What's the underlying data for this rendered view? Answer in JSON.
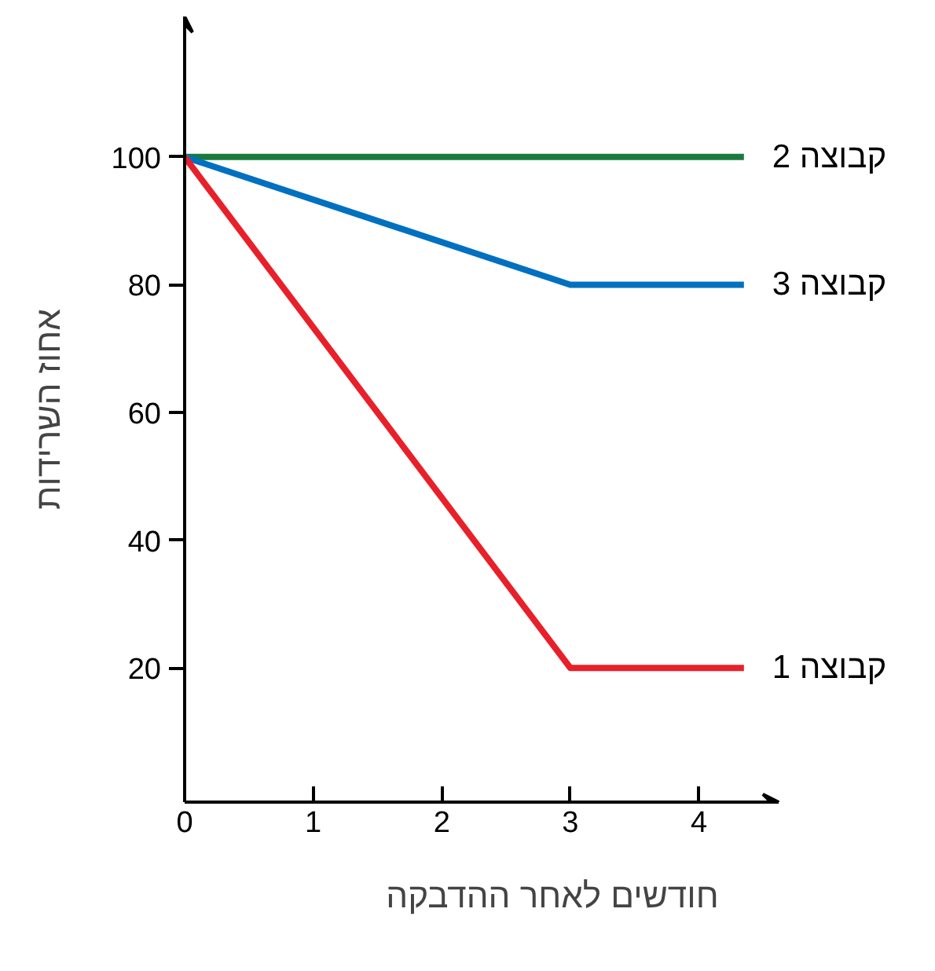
{
  "chart_data": {
    "type": "line",
    "xlabel": "חודשים לאחר ההדבקה",
    "ylabel": "אחוז השרידות",
    "xlim": [
      0,
      4.62
    ],
    "ylim": [
      -1,
      122
    ],
    "xticks": [
      0,
      1,
      2,
      3,
      4
    ],
    "yticks": [
      20,
      40,
      60,
      80,
      100
    ],
    "grid": false,
    "marker": "none",
    "line_style": "solid",
    "series": [
      {
        "name": "קבוצה 2",
        "color": "#1a7a3c",
        "x": [
          0,
          4.35
        ],
        "values": [
          100,
          100
        ]
      },
      {
        "name": "קבוצה 3",
        "color": "#0070c0",
        "x": [
          0,
          3,
          4.35
        ],
        "values": [
          100,
          80,
          80
        ]
      },
      {
        "name": "קבוצה 1",
        "color": "#e8202a",
        "x": [
          0,
          3,
          4.35
        ],
        "values": [
          100,
          20,
          20
        ]
      }
    ]
  }
}
